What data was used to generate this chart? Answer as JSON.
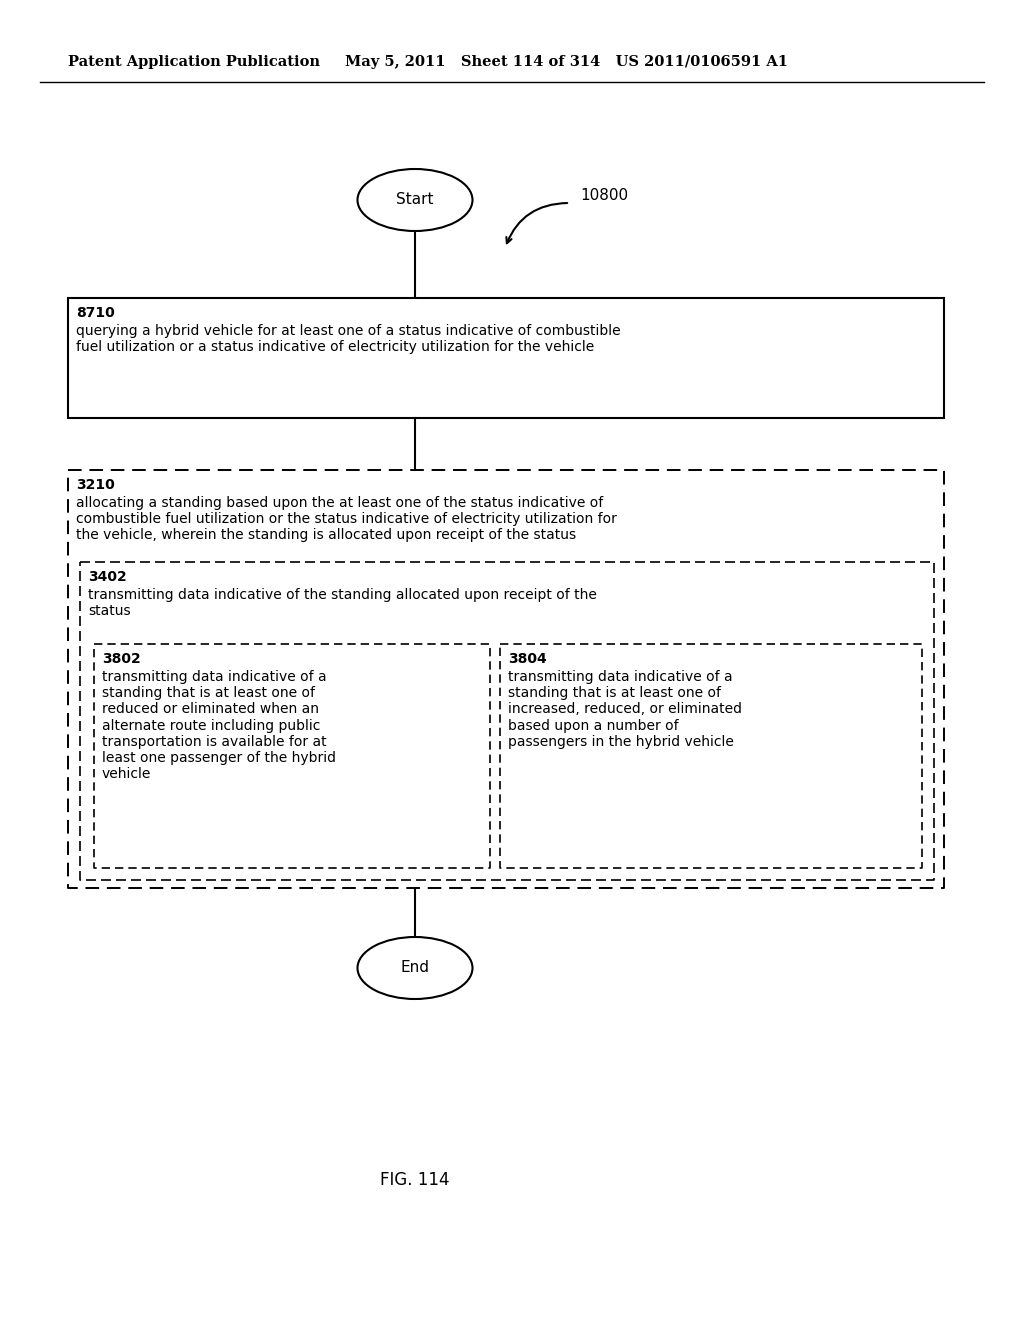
{
  "title_left": "Patent Application Publication",
  "title_right": "May 5, 2011   Sheet 114 of 314   US 2011/0106591 A1",
  "fig_label": "FIG. 114",
  "diagram_label": "10800",
  "start_label": "Start",
  "end_label": "End",
  "box8710_id": "8710",
  "box8710_text": "querying a hybrid vehicle for at least one of a status indicative of combustible\nfuel utilization or a status indicative of electricity utilization for the vehicle",
  "box3210_id": "3210",
  "box3210_text": "allocating a standing based upon the at least one of the status indicative of\ncombustible fuel utilization or the status indicative of electricity utilization for\nthe vehicle, wherein the standing is allocated upon receipt of the status",
  "box3402_id": "3402",
  "box3402_text": "transmitting data indicative of the standing allocated upon receipt of the\nstatus",
  "box3802_id": "3802",
  "box3802_text": "transmitting data indicative of a\nstanding that is at least one of\nreduced or eliminated when an\nalternate route including public\ntransportation is available for at\nleast one passenger of the hybrid\nvehicle",
  "box3804_id": "3804",
  "box3804_text": "transmitting data indicative of a\nstanding that is at least one of\nincreased, reduced, or eliminated\nbased upon a number of\npassengers in the hybrid vehicle",
  "bg_color": "#ffffff",
  "text_color": "#000000"
}
